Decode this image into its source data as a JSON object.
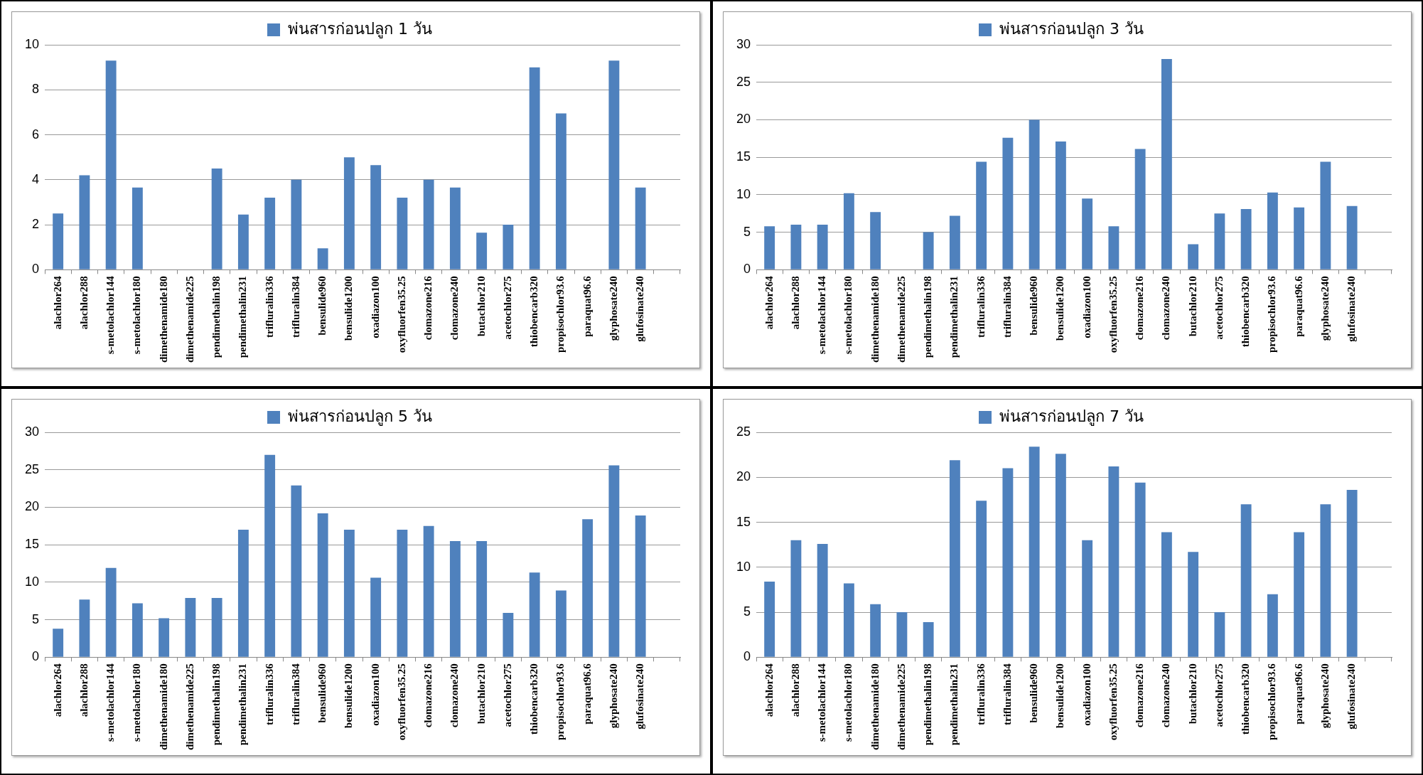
{
  "chart_data": [
    {
      "type": "bar",
      "categories": [
        "alachlor264",
        "alachlor288",
        "s-metolachlor144",
        "s-metolachlor180",
        "dimethenamide180",
        "dimethenamide225",
        "pendimethalin198",
        "pendimethalin231",
        "trifluralin336",
        "trifluralin384",
        "bensulide960",
        "bensulide1200",
        "oxadiazon100",
        "oxyfluorfen35.25",
        "clomazone216",
        "clomazone240",
        "butachlor210",
        "acetochlor275",
        "thiobencarb320",
        "propisochlor93.6",
        "paraquat96.6",
        "glyphosate240",
        "glufosinate240",
        null
      ],
      "series": [
        {
          "name": "พ่นสารก่อนปลูก 1 วัน",
          "color": "#4f81bd",
          "values": [
            2.5,
            4.2,
            9.3,
            3.65,
            null,
            null,
            4.5,
            2.45,
            3.2,
            4.0,
            0.95,
            5.0,
            4.65,
            3.2,
            4.0,
            3.65,
            1.65,
            2.0,
            9.0,
            6.95,
            null,
            9.3,
            3.65,
            null
          ]
        }
      ],
      "ylim": [
        0,
        10
      ],
      "yticks": [
        0,
        2,
        4,
        6,
        8,
        10
      ],
      "grid": "y",
      "legend": "top"
    },
    {
      "type": "bar",
      "categories": [
        "alachlor264",
        "alachlor288",
        "s-metolachlor144",
        "s-metolachlor180",
        "dimethenamide180",
        "dimethenamide225",
        "pendimethalin198",
        "pendimethalin231",
        "trifluralin336",
        "trifluralin384",
        "bensulide960",
        "bensulide1200",
        "oxadiazon100",
        "oxyfluorfen35.25",
        "clomazone216",
        "clomazone240",
        "butachlor210",
        "acetochlor275",
        "thiobencarb320",
        "propisochlor93.6",
        "paraquat96.6",
        "glyphosate240",
        "glufosinate240",
        null
      ],
      "series": [
        {
          "name": "พ่นสารก่อนปลูก 3 วัน",
          "color": "#4f81bd",
          "values": [
            5.8,
            6.0,
            6.0,
            10.2,
            7.7,
            null,
            5.0,
            7.2,
            14.4,
            17.6,
            20.0,
            17.1,
            9.5,
            5.8,
            16.1,
            28.1,
            3.4,
            7.5,
            8.1,
            10.3,
            8.3,
            14.4,
            8.5,
            null
          ]
        }
      ],
      "ylim": [
        0,
        30
      ],
      "yticks": [
        0,
        5,
        10,
        15,
        20,
        25,
        30
      ],
      "grid": "y",
      "legend": "top"
    },
    {
      "type": "bar",
      "categories": [
        "alachlor264",
        "alachlor288",
        "s-metolachlor144",
        "s-metolachlor180",
        "dimethenamide180",
        "dimethenamide225",
        "pendimethalin198",
        "pendimethalin231",
        "trifluralin336",
        "trifluralin384",
        "bensulide960",
        "bensulide1200",
        "oxadiazon100",
        "oxyfluorfen35.25",
        "clomazone216",
        "clomazone240",
        "butachlor210",
        "acetochlor275",
        "thiobencarb320",
        "propisochlor93.6",
        "paraquat96.6",
        "glyphosate240",
        "glufosinate240",
        null
      ],
      "series": [
        {
          "name": "พ่นสารก่อนปลูก 5 วัน",
          "color": "#4f81bd",
          "values": [
            3.8,
            7.7,
            11.9,
            7.2,
            5.2,
            7.9,
            7.9,
            17.0,
            27.0,
            22.9,
            19.2,
            17.0,
            10.6,
            17.0,
            17.5,
            15.5,
            15.5,
            5.9,
            11.3,
            8.9,
            18.4,
            25.6,
            18.9,
            null
          ]
        }
      ],
      "ylim": [
        0,
        30
      ],
      "yticks": [
        0,
        5,
        10,
        15,
        20,
        25,
        30
      ],
      "grid": "y",
      "legend": "top"
    },
    {
      "type": "bar",
      "categories": [
        "alachlor264",
        "alachlor288",
        "s-metolachlor144",
        "s-metolachlor180",
        "dimethenamide180",
        "dimethenamide225",
        "pendimethalin198",
        "pendimethalin231",
        "trifluralin336",
        "trifluralin384",
        "bensulide960",
        "bensulide1200",
        "oxadiazon100",
        "oxyfluorfen35.25",
        "clomazone216",
        "clomazone240",
        "butachlor210",
        "acetochlor275",
        "thiobencarb320",
        "propisochlor93.6",
        "paraquat96.6",
        "glyphosate240",
        "glufosinate240",
        null
      ],
      "series": [
        {
          "name": "พ่นสารก่อนปลูก 7 วัน",
          "color": "#4f81bd",
          "values": [
            8.4,
            13.0,
            12.6,
            8.2,
            5.9,
            5.0,
            3.9,
            21.9,
            17.4,
            21.0,
            23.4,
            22.6,
            13.0,
            21.2,
            19.4,
            13.9,
            11.7,
            5.0,
            17.0,
            7.0,
            13.9,
            17.0,
            18.6,
            null
          ]
        }
      ],
      "ylim": [
        0,
        25
      ],
      "yticks": [
        0,
        5,
        10,
        15,
        20,
        25
      ],
      "grid": "y",
      "legend": "top"
    }
  ]
}
